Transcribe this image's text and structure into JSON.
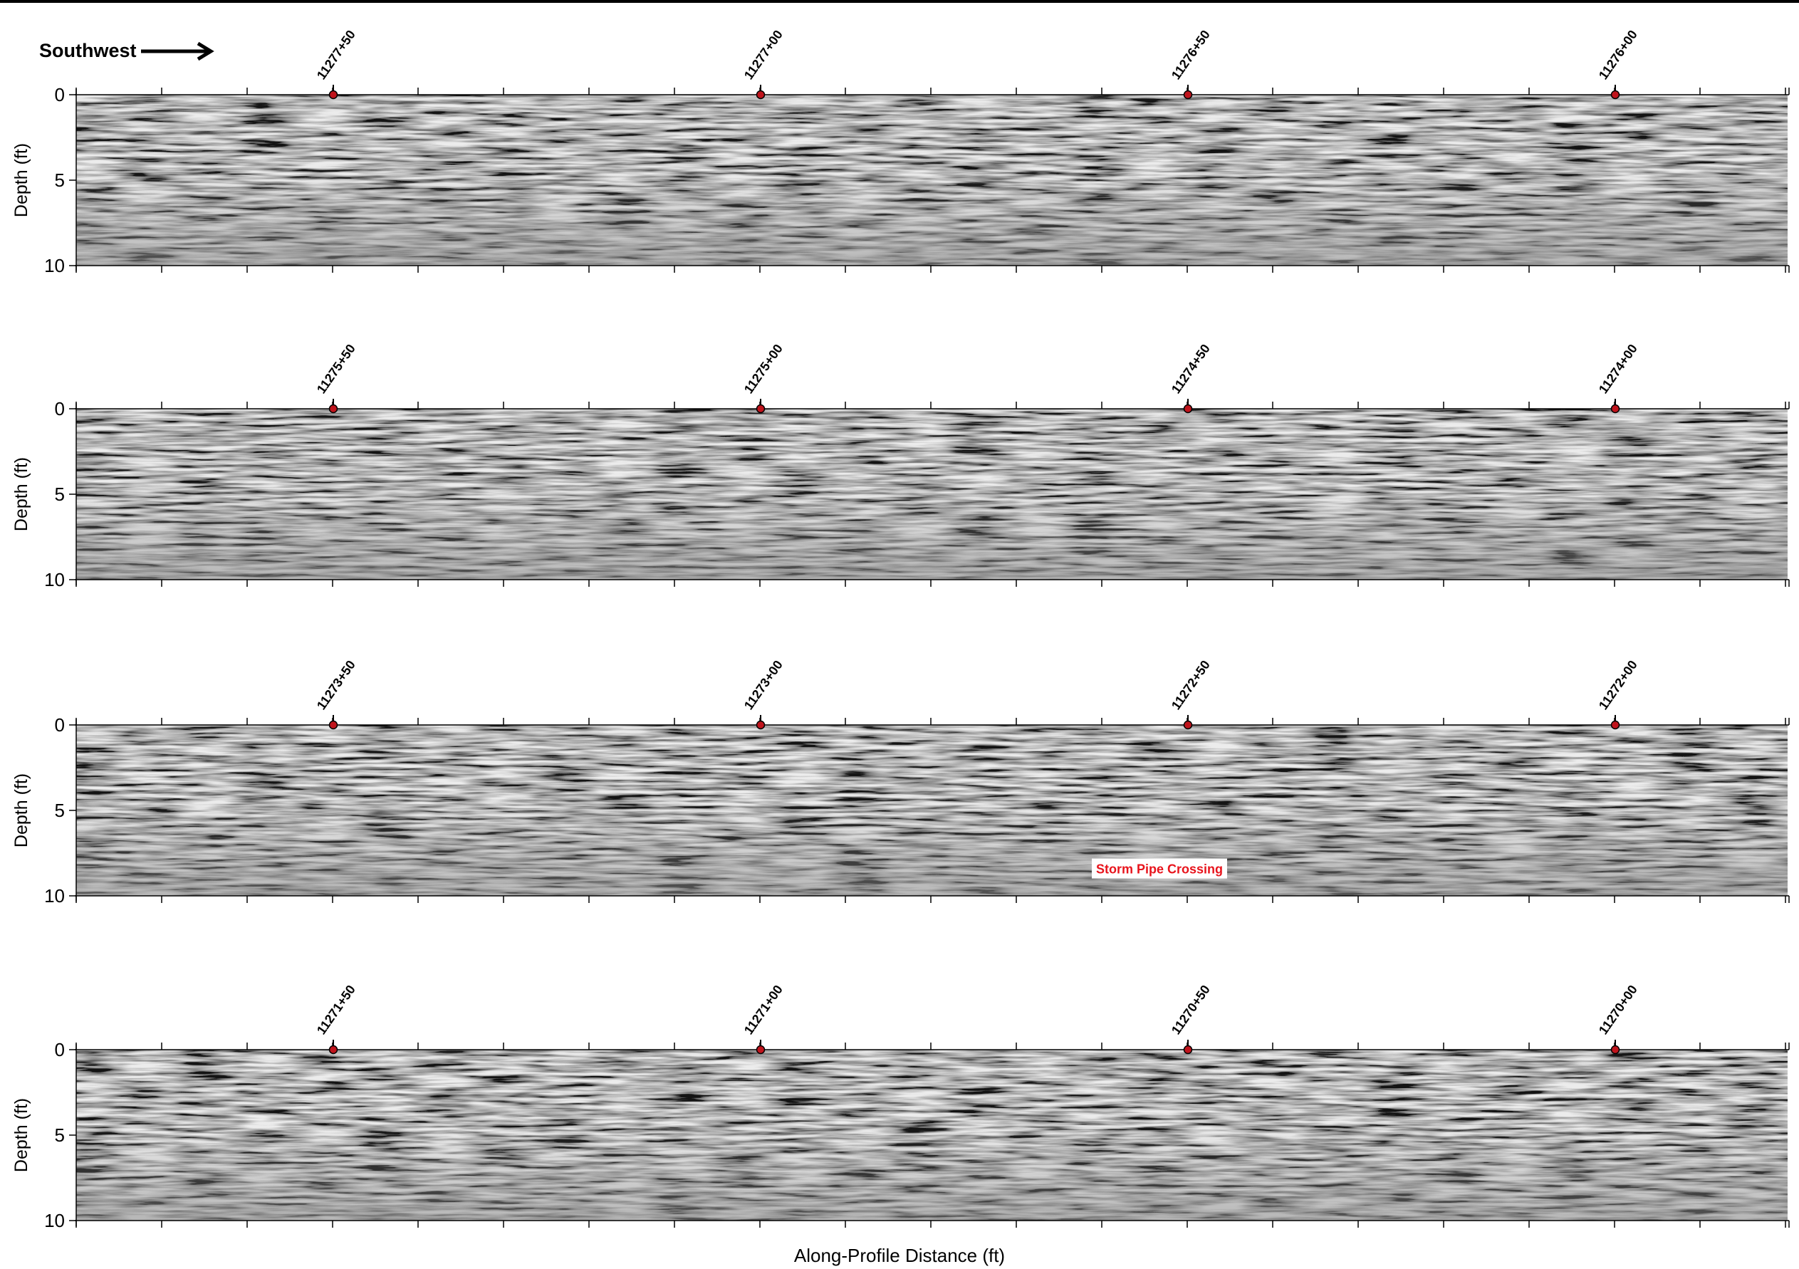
{
  "header": {
    "direction_label": "Southwest"
  },
  "axes": {
    "ylabel": "Depth (ft)",
    "xlabel": "Along-Profile Distance (ft)",
    "depth_ticks": [
      "0",
      "5",
      "10"
    ],
    "ylim": [
      0,
      10
    ]
  },
  "colors": {
    "marker_fill": "#c0141c",
    "annotation_text": "#e8141c",
    "radargram_base": "#808080"
  },
  "panels": [
    {
      "stations": [
        "11277+50",
        "11277+00",
        "11276+50",
        "11276+00"
      ],
      "annotations": []
    },
    {
      "stations": [
        "11275+50",
        "11275+00",
        "11274+50",
        "11274+00"
      ],
      "annotations": []
    },
    {
      "stations": [
        "11273+50",
        "11273+00",
        "11272+50",
        "11272+00"
      ],
      "annotations": [
        {
          "text": "Storm Pipe Crossing",
          "station_index": 2,
          "depth_ft": 8.4
        }
      ]
    },
    {
      "stations": [
        "11271+50",
        "11271+00",
        "11270+50",
        "11270+00"
      ],
      "annotations": []
    }
  ]
}
